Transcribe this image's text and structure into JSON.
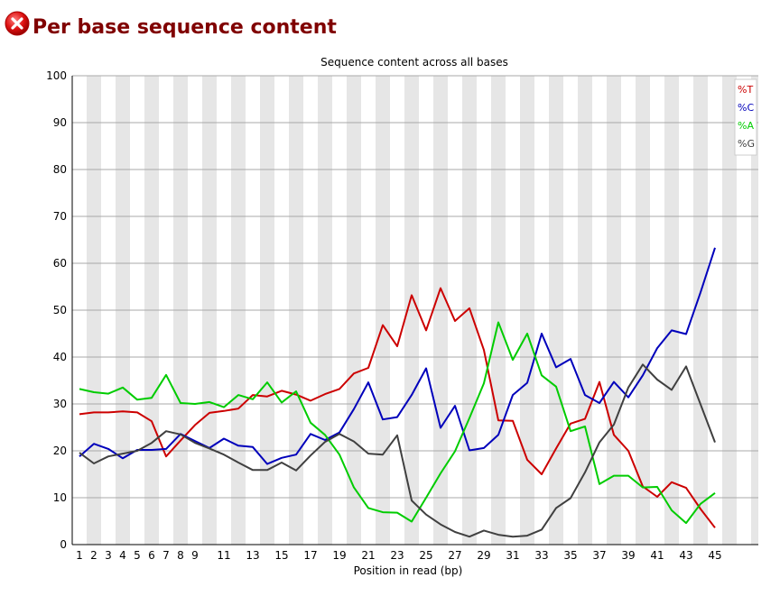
{
  "header": {
    "title": "Per base sequence content",
    "status_icon": "fail-icon"
  },
  "chart_data": {
    "type": "line",
    "title": "Sequence content across all bases",
    "xlabel": "Position in read (bp)",
    "ylabel": "",
    "ylim": [
      0,
      100
    ],
    "yticks": [
      0,
      10,
      20,
      30,
      40,
      50,
      60,
      70,
      80,
      90,
      100
    ],
    "xtick_labels": [
      "1",
      "2",
      "3",
      "4",
      "5",
      "6",
      "7",
      "8",
      "9",
      "11",
      "13",
      "15",
      "17",
      "19",
      "21",
      "23",
      "25",
      "27",
      "29",
      "31",
      "33",
      "35",
      "37",
      "39",
      "41",
      "43",
      "45"
    ],
    "x": [
      1,
      2,
      3,
      4,
      5,
      6,
      7,
      8,
      9,
      10,
      11,
      12,
      13,
      14,
      15,
      16,
      17,
      18,
      19,
      20,
      21,
      22,
      23,
      24,
      25,
      26,
      27,
      28,
      29,
      30,
      31,
      32,
      33,
      34,
      35,
      36,
      37,
      38,
      39,
      40,
      41,
      42,
      43,
      44,
      45
    ],
    "grid": "horizontal",
    "legend_position": "top-right",
    "series": [
      {
        "name": "%T",
        "color": "#cc0000",
        "values": [
          27.8,
          28.2,
          28.2,
          28.4,
          28.2,
          26.3,
          18.8,
          22.2,
          25.5,
          28.1,
          28.5,
          29.0,
          31.9,
          31.6,
          32.8,
          32.0,
          30.7,
          32.1,
          33.2,
          36.5,
          37.7,
          46.8,
          42.3,
          53.2,
          45.7,
          54.7,
          47.7,
          50.4,
          41.5,
          26.5,
          26.4,
          18.1,
          15.0,
          20.5,
          25.8,
          26.8,
          34.7,
          23.4,
          20.0,
          12.4,
          10.2,
          13.3,
          12.1,
          7.6,
          3.6
        ]
      },
      {
        "name": "%C",
        "color": "#0000bb",
        "values": [
          18.8,
          21.5,
          20.4,
          18.4,
          20.2,
          20.2,
          20.4,
          23.6,
          22.1,
          20.6,
          22.6,
          21.1,
          20.8,
          17.2,
          18.5,
          19.2,
          23.6,
          22.3,
          23.9,
          28.9,
          34.6,
          26.7,
          27.2,
          31.9,
          37.6,
          24.9,
          29.6,
          20.1,
          20.6,
          23.4,
          31.9,
          34.5,
          45.0,
          37.8,
          39.6,
          31.9,
          30.2,
          34.7,
          31.4,
          36.1,
          41.9,
          45.7,
          44.9,
          53.8,
          63.3
        ]
      },
      {
        "name": "%A",
        "color": "#00cc00",
        "values": [
          33.2,
          32.5,
          32.2,
          33.5,
          30.9,
          31.3,
          36.2,
          30.2,
          30.0,
          30.4,
          29.3,
          31.9,
          31.0,
          34.6,
          30.3,
          32.7,
          26.0,
          23.4,
          19.2,
          12.2,
          7.8,
          6.9,
          6.8,
          4.9,
          10.0,
          15.2,
          19.9,
          27.0,
          34.4,
          47.4,
          39.4,
          45.0,
          36.1,
          33.7,
          24.2,
          25.2,
          12.9,
          14.7,
          14.7,
          12.2,
          12.3,
          7.3,
          4.6,
          8.7,
          11.0
        ]
      },
      {
        "name": "%G",
        "color": "#404040",
        "values": [
          19.6,
          17.3,
          18.8,
          19.4,
          20.0,
          21.7,
          24.2,
          23.5,
          21.7,
          20.5,
          19.2,
          17.5,
          15.9,
          15.9,
          17.5,
          15.8,
          19.0,
          21.9,
          23.6,
          22.0,
          19.4,
          19.2,
          23.3,
          9.4,
          6.4,
          4.3,
          2.7,
          1.7,
          3.0,
          2.1,
          1.7,
          1.9,
          3.2,
          7.8,
          9.9,
          15.4,
          21.8,
          25.6,
          33.5,
          38.4,
          35.2,
          33.0,
          38.0,
          29.9,
          21.8
        ]
      }
    ]
  }
}
